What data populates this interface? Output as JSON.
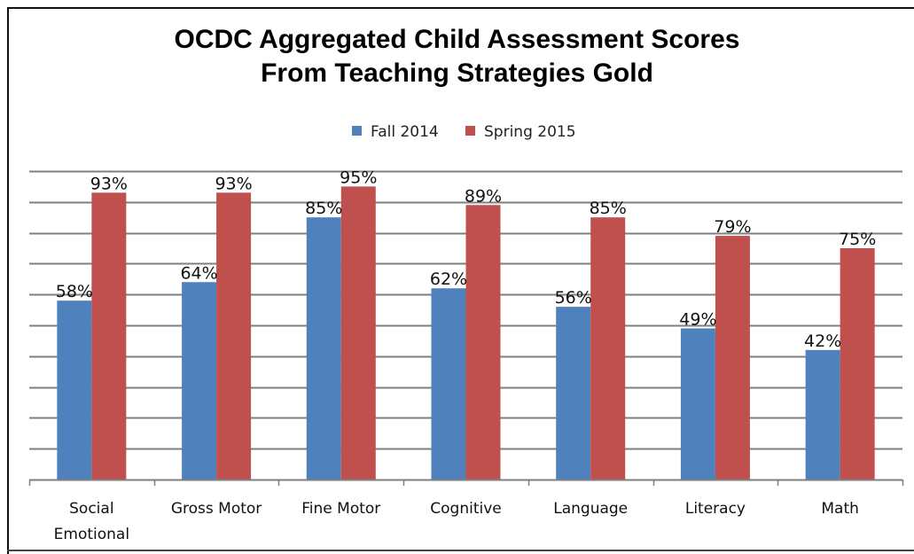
{
  "chart_data": {
    "type": "bar",
    "title": [
      "OCDC Aggregated Child Assessment Scores",
      "From Teaching Strategies Gold"
    ],
    "categories": [
      [
        "Social",
        "Emotional"
      ],
      [
        "Gross Motor"
      ],
      [
        "Fine Motor"
      ],
      [
        "Cognitive"
      ],
      [
        "Language"
      ],
      [
        "Literacy"
      ],
      [
        "Math"
      ]
    ],
    "series": [
      {
        "name": "Fall 2014",
        "color": "#4f81bd",
        "values": [
          58,
          64,
          85,
          62,
          56,
          49,
          42
        ],
        "labels": [
          "58%",
          "64%",
          "85%",
          "62%",
          "56%",
          "49%",
          "42%"
        ]
      },
      {
        "name": "Spring 2015",
        "color": "#c0504d",
        "values": [
          93,
          93,
          95,
          89,
          85,
          79,
          75
        ],
        "labels": [
          "93%",
          "93%",
          "95%",
          "89%",
          "85%",
          "79%",
          "75%"
        ]
      }
    ],
    "ylim": [
      0,
      100
    ],
    "grid": true,
    "legend": "top-center"
  }
}
